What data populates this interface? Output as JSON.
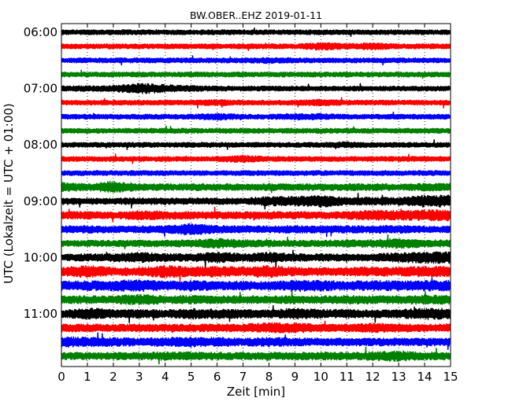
{
  "chart_data": {
    "type": "line",
    "title": "BW.OBER..EHZ 2019-01-11",
    "xlabel": "Zeit  [min]",
    "ylabel": "UTC (Lokalzeit = UTC + 01:00)",
    "xlim": [
      0,
      15
    ],
    "x_ticks": [
      0,
      1,
      2,
      3,
      4,
      5,
      6,
      7,
      8,
      9,
      10,
      11,
      12,
      13,
      14,
      15
    ],
    "y_ticks": [
      "06:00",
      "07:00",
      "08:00",
      "09:00",
      "10:00",
      "11:00"
    ],
    "rows_per_hour": 4,
    "trace_start": "06:00",
    "trace_count": 24,
    "trace_duration_min": 15,
    "trace_colors": [
      "#000000",
      "#ff0000",
      "#0000ff",
      "#008000"
    ],
    "grid": "vertical dotted",
    "series": [
      {
        "values": [
          1,
          1,
          1,
          1,
          1,
          1,
          1,
          1,
          1,
          1,
          1,
          1,
          1,
          1,
          1
        ]
      },
      {
        "values": [
          1,
          1,
          1,
          1,
          1,
          1,
          1,
          1,
          1,
          1,
          1.6,
          1.2,
          1.5,
          1,
          1
        ]
      },
      {
        "values": [
          1,
          1,
          1,
          1,
          1,
          1,
          1,
          1,
          1.3,
          1,
          1,
          1,
          1,
          1,
          1
        ]
      },
      {
        "values": [
          1,
          1,
          1,
          1,
          1,
          1,
          1,
          1,
          1,
          1,
          1,
          1,
          1,
          1,
          1
        ]
      },
      {
        "values": [
          1.2,
          1.1,
          1.3,
          2.2,
          1.6,
          1.2,
          1,
          1,
          1,
          1,
          1,
          1,
          1,
          1,
          1
        ]
      },
      {
        "values": [
          1,
          1,
          1,
          1,
          1,
          1,
          1.3,
          1,
          1,
          1,
          1.4,
          1,
          1,
          1,
          1
        ]
      },
      {
        "values": [
          1,
          1,
          1,
          1,
          1,
          1,
          1.5,
          1,
          1,
          1.3,
          1.3,
          1,
          1,
          1,
          1
        ]
      },
      {
        "values": [
          1,
          1,
          1,
          1,
          1,
          1,
          1,
          1,
          1,
          1,
          1,
          1,
          1,
          1,
          1
        ]
      },
      {
        "values": [
          1,
          1,
          1,
          1,
          1,
          1,
          1,
          1,
          1,
          1,
          1,
          1.3,
          1,
          1,
          1
        ]
      },
      {
        "values": [
          1,
          1,
          1,
          1,
          1,
          1,
          1,
          1.6,
          1,
          1,
          1,
          1,
          1,
          1,
          1
        ]
      },
      {
        "values": [
          1,
          1,
          1,
          1,
          1,
          1,
          1,
          1,
          1,
          1,
          1,
          1,
          1,
          1,
          1
        ]
      },
      {
        "values": [
          2,
          1.4,
          2.5,
          1.5,
          1.3,
          1.5,
          1.4,
          1.3,
          1.5,
          1.3,
          1.4,
          1.4,
          1.4,
          1.3,
          1.6
        ]
      },
      {
        "values": [
          1.4,
          1.3,
          1.3,
          1.4,
          1.4,
          1.3,
          1.4,
          1.3,
          2,
          2,
          2.5,
          1.6,
          1.6,
          1.6,
          2.5
        ]
      },
      {
        "values": [
          1.5,
          1.6,
          1.3,
          2,
          1.7,
          1.6,
          1.5,
          1.5,
          1.6,
          1.5,
          1.4,
          1.6,
          2.2,
          2,
          2.3
        ]
      },
      {
        "values": [
          1.4,
          1.6,
          1.4,
          1.5,
          1.5,
          2.5,
          1.6,
          1.5,
          1.5,
          1.6,
          1.5,
          1.5,
          1.6,
          1.6,
          1.4
        ]
      },
      {
        "values": [
          1.2,
          1.3,
          1.3,
          1.4,
          1.4,
          1.5,
          2.1,
          1.6,
          1.4,
          1.3,
          1.4,
          1.5,
          1.5,
          2.2,
          1.5
        ]
      },
      {
        "values": [
          1.4,
          1.5,
          1.6,
          2.2,
          1.6,
          1.6,
          2.3,
          1.6,
          2.2,
          1.6,
          1.5,
          1.5,
          1.5,
          2,
          2.4
        ]
      },
      {
        "values": [
          1.8,
          2.6,
          1.7,
          1.7,
          2.6,
          1.9,
          2.4,
          1.8,
          2.6,
          1.7,
          1.6,
          1.8,
          2.1,
          1.8,
          2.2
        ]
      },
      {
        "values": [
          1.9,
          2,
          2.2,
          2.5,
          1.9,
          2.2,
          1.8,
          1.9,
          1.8,
          2.4,
          2.2,
          1.9,
          2.2,
          2,
          2.2
        ]
      },
      {
        "values": [
          1.6,
          1.6,
          1.6,
          2.2,
          1.6,
          1.8,
          1.6,
          1.7,
          1.6,
          1.7,
          1.6,
          1.8,
          1.7,
          1.7,
          1.9
        ]
      },
      {
        "values": [
          1.5,
          2.4,
          1.8,
          1.8,
          1.6,
          2.2,
          2,
          1.8,
          1.6,
          2.3,
          1.8,
          1.9,
          1.6,
          1.8,
          2.3
        ]
      },
      {
        "values": [
          1.6,
          1.6,
          1.5,
          1.6,
          1.5,
          1.6,
          1.6,
          1.6,
          2.2,
          2.2,
          1.5,
          1.6,
          2,
          1.7,
          1.6
        ]
      },
      {
        "values": [
          2.2,
          2,
          1.8,
          1.7,
          1.8,
          2.1,
          1.9,
          1.6,
          1.9,
          1.7,
          1.6,
          1.6,
          1.6,
          1.6,
          1.6
        ]
      },
      {
        "values": [
          1.5,
          1.5,
          1.5,
          1.5,
          1.8,
          1.7,
          1.6,
          1.5,
          1.5,
          1.6,
          1.6,
          1.6,
          1.8,
          2.2,
          1.6
        ]
      }
    ]
  }
}
